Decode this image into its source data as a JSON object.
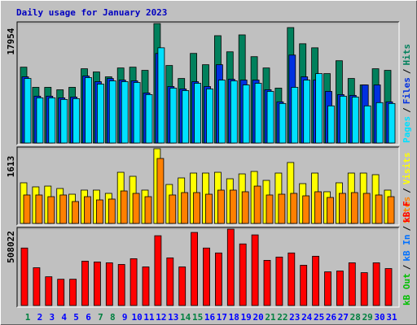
{
  "title": "Daily usage for January 2023",
  "categories": [
    "1",
    "2",
    "3",
    "4",
    "5",
    "6",
    "7",
    "8",
    "9",
    "10",
    "11",
    "12",
    "13",
    "14",
    "15",
    "16",
    "17",
    "18",
    "19",
    "20",
    "21",
    "22",
    "23",
    "24",
    "25",
    "26",
    "27",
    "28",
    "29",
    "30",
    "31"
  ],
  "category_colors": [
    "#008040",
    "#0000ff",
    "#0000ff",
    "#0000ff",
    "#0000ff",
    "#0000ff",
    "#008040",
    "#008040",
    "#0000ff",
    "#0000ff",
    "#0000ff",
    "#0000ff",
    "#0000ff",
    "#008040",
    "#008040",
    "#0000ff",
    "#0000ff",
    "#0000ff",
    "#0000ff",
    "#0000ff",
    "#008040",
    "#008040",
    "#0000ff",
    "#0000ff",
    "#0000ff",
    "#0000ff",
    "#0000ff",
    "#008040",
    "#008040",
    "#0000ff",
    "#0000ff"
  ],
  "legend_separator": "/",
  "chart_data": [
    {
      "type": "bar",
      "ylim": [
        0,
        17954
      ],
      "yticks": [
        17954
      ],
      "series": [
        {
          "name": "Hits",
          "color": "#00805c",
          "values": [
            11400,
            8370,
            8370,
            8000,
            8370,
            11160,
            10680,
            9950,
            11280,
            11400,
            10920,
            17954,
            11650,
            9700,
            13470,
            11770,
            16130,
            13710,
            16250,
            12980,
            11280,
            8250,
            17350,
            14920,
            14310,
            10430,
            12370,
            9700,
            8730,
            11160,
            10920
          ]
        },
        {
          "name": "Files",
          "color": "#0030e0",
          "values": [
            9950,
            7040,
            7040,
            6790,
            6910,
            10070,
            9220,
            9700,
            9460,
            9340,
            7520,
            13460,
            8490,
            8130,
            9220,
            8490,
            11770,
            9580,
            9460,
            9460,
            8010,
            6190,
            13220,
            9950,
            9460,
            7760,
            7280,
            7160,
            8730,
            8730,
            6190
          ]
        },
        {
          "name": "Pages",
          "color": "#00e0ff",
          "values": [
            9700,
            6790,
            6790,
            6550,
            6670,
            9830,
            8860,
            9340,
            9220,
            9100,
            7280,
            14310,
            8250,
            7880,
            8980,
            8130,
            9460,
            9340,
            8730,
            8980,
            7760,
            5940,
            8370,
            9460,
            10430,
            5580,
            7040,
            6910,
            5580,
            6070,
            5940
          ]
        }
      ]
    },
    {
      "type": "bar",
      "ylim": [
        0,
        1613
      ],
      "yticks": [
        1613
      ],
      "series": [
        {
          "name": "Visits",
          "color": "#ffff00",
          "values": [
            877,
            789,
            806,
            754,
            631,
            719,
            719,
            649,
            1104,
            1017,
            719,
            1613,
            841,
            982,
            1087,
            1087,
            1104,
            964,
            1069,
            1122,
            929,
            1087,
            1315,
            859,
            1087,
            684,
            877,
            1087,
            1087,
            1052,
            719
          ]
        },
        {
          "name": "Sites",
          "color": "#ff8000",
          "values": [
            614,
            614,
            578,
            614,
            473,
            578,
            508,
            526,
            701,
            649,
            578,
            1402,
            614,
            666,
            666,
            631,
            719,
            719,
            684,
            806,
            614,
            631,
            649,
            596,
            684,
            561,
            649,
            666,
            649,
            614,
            578
          ]
        }
      ]
    },
    {
      "type": "bar",
      "ylim": [
        0,
        508022
      ],
      "yticks": [
        508022
      ],
      "series": [
        {
          "name": "kB F",
          "color": "#ff0000",
          "values": [
            382340,
            251250,
            191170,
            174780,
            174780,
            294950,
            289490,
            284020,
            273100,
            311330,
            256710,
            464270,
            316800,
            256710,
            486120,
            382340,
            349570,
            508022,
            409650,
            469730,
            300410,
            322260,
            349570,
            267640,
            327720,
            223940,
            229400,
            284020,
            218480,
            284020,
            245790
          ]
        }
      ],
      "legend_only": [
        {
          "name": "kB In",
          "color": "#0070ff"
        },
        {
          "name": "kB Out",
          "color": "#00c000"
        }
      ]
    }
  ]
}
